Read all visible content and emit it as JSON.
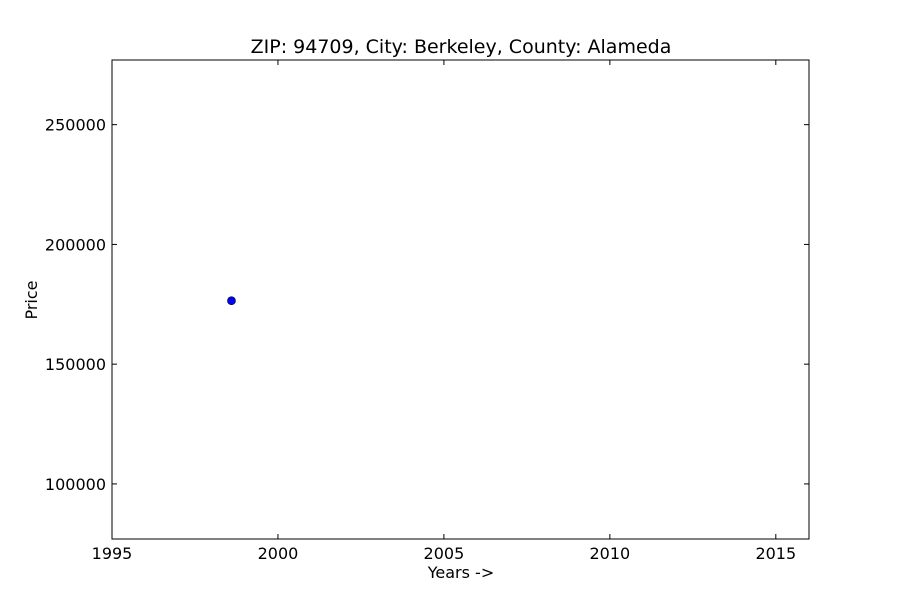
{
  "chart_data": {
    "type": "scatter",
    "title": "ZIP: 94709, City: Berkeley, County: Alameda",
    "xlabel": "Years ->",
    "ylabel": "Price",
    "xlim": [
      1995,
      2016
    ],
    "ylim": [
      77000,
      277000
    ],
    "xticks": [
      1995,
      2000,
      2005,
      2010,
      2015
    ],
    "yticks": [
      100000,
      150000,
      200000,
      250000
    ],
    "grid": false,
    "series": [
      {
        "color": "#0000ff",
        "points": [
          {
            "x": 1998.6,
            "y": 176500
          }
        ]
      }
    ]
  }
}
